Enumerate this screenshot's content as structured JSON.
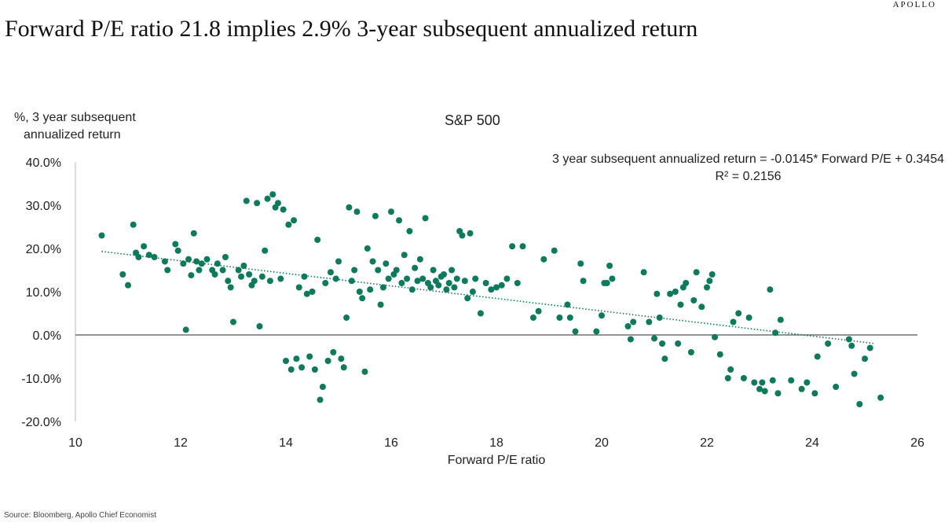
{
  "brand": "APOLLO",
  "title": "Forward P/E ratio 21.8 implies 2.9% 3-year subsequent annualized return",
  "source": "Source: Bloomberg, Apollo Chief Economist",
  "colors": {
    "points": "#0d7a5c",
    "trend": "#0d7a5c",
    "axis": "#555555"
  },
  "chart_data": {
    "type": "scatter",
    "title": "S&P 500",
    "xlabel": "Forward P/E ratio",
    "ylabel_lines": [
      "%, 3 year subsequent",
      "annualized return"
    ],
    "xlim": [
      10,
      26
    ],
    "ylim": [
      -20,
      40
    ],
    "xticks": [
      10,
      12,
      14,
      16,
      18,
      20,
      22,
      24,
      26
    ],
    "xtick_labels": [
      "10",
      "12",
      "14",
      "16",
      "18",
      "20",
      "22",
      "24",
      "26"
    ],
    "yticks": [
      40,
      30,
      20,
      10,
      0,
      -10,
      -20
    ],
    "ytick_labels": [
      "40.0%",
      "30.0%",
      "20.0%",
      "10.0%",
      "0.0%",
      "-10.0%",
      "-20.0%"
    ],
    "annotation_lines": [
      "3 year subsequent annualized return = -0.0145* Forward P/E + 0.3454",
      "R² = 0.2156"
    ],
    "trendline": {
      "slope": -1.45,
      "intercept": 34.54,
      "x_range": [
        10.5,
        25.2
      ],
      "style": "dotted"
    },
    "grid": false,
    "points": [
      [
        10.5,
        23
      ],
      [
        10.9,
        14
      ],
      [
        11.0,
        11.5
      ],
      [
        11.1,
        25.5
      ],
      [
        11.15,
        19
      ],
      [
        11.2,
        18
      ],
      [
        11.3,
        20.5
      ],
      [
        11.4,
        18.5
      ],
      [
        11.5,
        18
      ],
      [
        11.7,
        17
      ],
      [
        11.75,
        15
      ],
      [
        11.9,
        21
      ],
      [
        11.95,
        19.5
      ],
      [
        12.05,
        16.5
      ],
      [
        12.1,
        1.2
      ],
      [
        12.15,
        17.5
      ],
      [
        12.2,
        13.8
      ],
      [
        12.25,
        23.5
      ],
      [
        12.3,
        17
      ],
      [
        12.35,
        15
      ],
      [
        12.4,
        16.5
      ],
      [
        12.5,
        17.5
      ],
      [
        12.6,
        15
      ],
      [
        12.65,
        14
      ],
      [
        12.7,
        16.5
      ],
      [
        12.8,
        15
      ],
      [
        12.85,
        18
      ],
      [
        12.9,
        12.5
      ],
      [
        12.95,
        11
      ],
      [
        13.0,
        3
      ],
      [
        13.1,
        15
      ],
      [
        13.15,
        13.5
      ],
      [
        13.2,
        16
      ],
      [
        13.25,
        31
      ],
      [
        13.3,
        14
      ],
      [
        13.35,
        11.5
      ],
      [
        13.4,
        12.5
      ],
      [
        13.45,
        30.5
      ],
      [
        13.5,
        2
      ],
      [
        13.55,
        13.5
      ],
      [
        13.6,
        19.5
      ],
      [
        13.65,
        31.5
      ],
      [
        13.7,
        12.5
      ],
      [
        13.75,
        32.5
      ],
      [
        13.8,
        29.5
      ],
      [
        13.85,
        30.5
      ],
      [
        13.9,
        13
      ],
      [
        13.95,
        29
      ],
      [
        14.0,
        -6
      ],
      [
        14.05,
        25.5
      ],
      [
        14.1,
        -8
      ],
      [
        14.15,
        26.5
      ],
      [
        14.2,
        -5.5
      ],
      [
        14.25,
        11
      ],
      [
        14.3,
        -7.5
      ],
      [
        14.35,
        13.5
      ],
      [
        14.4,
        9.5
      ],
      [
        14.45,
        -5
      ],
      [
        14.5,
        10
      ],
      [
        14.55,
        -8
      ],
      [
        14.6,
        22
      ],
      [
        14.65,
        -15
      ],
      [
        14.7,
        -12
      ],
      [
        14.75,
        12
      ],
      [
        14.8,
        -6
      ],
      [
        14.85,
        14.5
      ],
      [
        14.9,
        -4
      ],
      [
        14.95,
        13
      ],
      [
        15.0,
        17
      ],
      [
        15.05,
        -5.5
      ],
      [
        15.1,
        -7.5
      ],
      [
        15.15,
        4
      ],
      [
        15.2,
        29.5
      ],
      [
        15.25,
        12.5
      ],
      [
        15.3,
        15
      ],
      [
        15.35,
        28.5
      ],
      [
        15.4,
        10
      ],
      [
        15.45,
        8.5
      ],
      [
        15.5,
        -8.5
      ],
      [
        15.55,
        20
      ],
      [
        15.6,
        10.5
      ],
      [
        15.65,
        17
      ],
      [
        15.7,
        27.5
      ],
      [
        15.75,
        15
      ],
      [
        15.8,
        7
      ],
      [
        15.85,
        11
      ],
      [
        15.9,
        16.5
      ],
      [
        15.95,
        13
      ],
      [
        16.0,
        28.5
      ],
      [
        16.05,
        14
      ],
      [
        16.1,
        15
      ],
      [
        16.15,
        26.5
      ],
      [
        16.2,
        12
      ],
      [
        16.25,
        18.5
      ],
      [
        16.3,
        13
      ],
      [
        16.35,
        24
      ],
      [
        16.4,
        10.5
      ],
      [
        16.45,
        15.5
      ],
      [
        16.5,
        12.5
      ],
      [
        16.55,
        17.5
      ],
      [
        16.6,
        13
      ],
      [
        16.65,
        27
      ],
      [
        16.7,
        12
      ],
      [
        16.75,
        11
      ],
      [
        16.8,
        15
      ],
      [
        16.85,
        12.5
      ],
      [
        16.9,
        11.5
      ],
      [
        16.95,
        13.5
      ],
      [
        17.0,
        14
      ],
      [
        17.05,
        10.5
      ],
      [
        17.1,
        12
      ],
      [
        17.15,
        15
      ],
      [
        17.2,
        11
      ],
      [
        17.25,
        13
      ],
      [
        17.3,
        24
      ],
      [
        17.35,
        23
      ],
      [
        17.4,
        12.5
      ],
      [
        17.45,
        8.5
      ],
      [
        17.5,
        23.5
      ],
      [
        17.55,
        10
      ],
      [
        17.6,
        13
      ],
      [
        17.7,
        5
      ],
      [
        17.8,
        12
      ],
      [
        17.9,
        10.5
      ],
      [
        18.0,
        11
      ],
      [
        18.1,
        11.5
      ],
      [
        18.2,
        13
      ],
      [
        18.3,
        20.5
      ],
      [
        18.4,
        12
      ],
      [
        18.5,
        20.5
      ],
      [
        18.7,
        4
      ],
      [
        18.8,
        5.5
      ],
      [
        18.9,
        17.5
      ],
      [
        19.1,
        19.5
      ],
      [
        19.2,
        4
      ],
      [
        19.35,
        7
      ],
      [
        19.4,
        4
      ],
      [
        19.5,
        0.8
      ],
      [
        19.6,
        16.5
      ],
      [
        19.65,
        12.5
      ],
      [
        19.9,
        0.8
      ],
      [
        20.0,
        4.5
      ],
      [
        20.05,
        12
      ],
      [
        20.1,
        12
      ],
      [
        20.15,
        16
      ],
      [
        20.2,
        13
      ],
      [
        20.5,
        2
      ],
      [
        20.55,
        -1
      ],
      [
        20.6,
        3
      ],
      [
        20.8,
        14.5
      ],
      [
        20.9,
        3
      ],
      [
        21.0,
        -0.8
      ],
      [
        21.05,
        9.5
      ],
      [
        21.1,
        4
      ],
      [
        21.15,
        -2
      ],
      [
        21.2,
        -5.5
      ],
      [
        21.3,
        9.5
      ],
      [
        21.4,
        10
      ],
      [
        21.45,
        -2
      ],
      [
        21.5,
        7
      ],
      [
        21.55,
        11
      ],
      [
        21.6,
        12
      ],
      [
        21.7,
        -4
      ],
      [
        21.75,
        8
      ],
      [
        21.8,
        14.5
      ],
      [
        21.9,
        6.5
      ],
      [
        22.0,
        11
      ],
      [
        22.05,
        12.5
      ],
      [
        22.1,
        14
      ],
      [
        22.15,
        -0.5
      ],
      [
        22.25,
        -4.5
      ],
      [
        22.4,
        -10
      ],
      [
        22.45,
        -8
      ],
      [
        22.5,
        3
      ],
      [
        22.6,
        5
      ],
      [
        22.7,
        -10
      ],
      [
        22.8,
        4
      ],
      [
        22.9,
        -11
      ],
      [
        23.0,
        -12.5
      ],
      [
        23.05,
        -11
      ],
      [
        23.1,
        -13
      ],
      [
        23.2,
        10.5
      ],
      [
        23.25,
        -10.5
      ],
      [
        23.3,
        0.5
      ],
      [
        23.35,
        -13.5
      ],
      [
        23.4,
        3.5
      ],
      [
        23.6,
        -10.5
      ],
      [
        23.8,
        -12.5
      ],
      [
        23.9,
        -11
      ],
      [
        24.05,
        -13.5
      ],
      [
        24.1,
        -5
      ],
      [
        24.3,
        -2
      ],
      [
        24.45,
        -12
      ],
      [
        24.7,
        -1
      ],
      [
        24.75,
        -2.5
      ],
      [
        24.8,
        -9
      ],
      [
        24.9,
        -16
      ],
      [
        25.0,
        -5.5
      ],
      [
        25.1,
        -3
      ],
      [
        25.3,
        -14.5
      ]
    ]
  }
}
